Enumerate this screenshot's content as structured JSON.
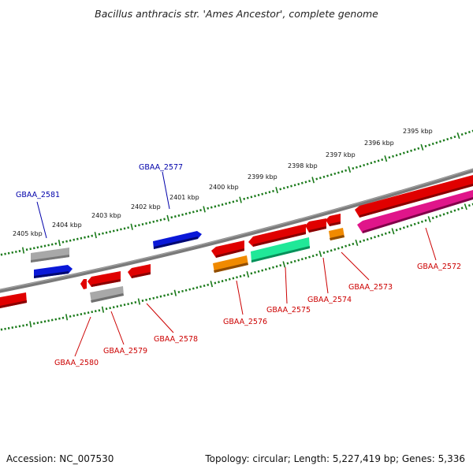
{
  "title": "Bacillus anthracis str. 'Ames Ancestor', complete genome",
  "footer": {
    "accession": "Accession: NC_007530",
    "summary": "Topology: circular; Length: 5,227,419 bp; Genes: 5,336"
  },
  "colors": {
    "backbone": "#7a7a7a",
    "tick": "#1a7a1a",
    "red": "#e00000",
    "blue": "#0a18d8",
    "gray": "#a8a8a8",
    "orange": "#f08a00",
    "green": "#20e898",
    "magenta": "#e0158a",
    "label_forward": "#0000aa",
    "label_reverse": "#cc0000"
  },
  "kbp_labels": [
    "2395 kbp",
    "2396 kbp",
    "2397 kbp",
    "2398 kbp",
    "2399 kbp",
    "2400 kbp",
    "2401 kbp",
    "2402 kbp",
    "2403 kbp",
    "2404 kbp",
    "2405 kbp"
  ],
  "genes": [
    {
      "name": "GBAA_2572",
      "strand": "reverse"
    },
    {
      "name": "GBAA_2573",
      "strand": "reverse"
    },
    {
      "name": "GBAA_2574",
      "strand": "reverse"
    },
    {
      "name": "GBAA_2575",
      "strand": "reverse"
    },
    {
      "name": "GBAA_2576",
      "strand": "reverse"
    },
    {
      "name": "GBAA_2577",
      "strand": "forward"
    },
    {
      "name": "GBAA_2578",
      "strand": "reverse"
    },
    {
      "name": "GBAA_2579",
      "strand": "reverse"
    },
    {
      "name": "GBAA_2580",
      "strand": "reverse"
    },
    {
      "name": "GBAA_2581",
      "strand": "forward"
    }
  ]
}
